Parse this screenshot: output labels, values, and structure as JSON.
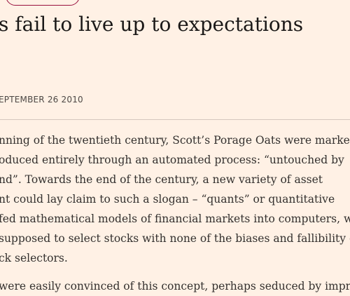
{
  "article": {
    "headline": "s fail to live up to expectations",
    "dateline": "EPTEMBER 26 2010",
    "paragraph1_lines": [
      "nning of the twentieth century, Scott’s Porage Oats were market",
      "oduced entirely through an automated process: “untouched by",
      "nd”. Towards the end of the century, a new variety of asset",
      "nt could lay claim to such a slogan – “quants” or quantitative",
      "fed mathematical models of financial markets into computers, w",
      "supposed to select stocks with none of the biases and fallibility o",
      "ck selectors."
    ],
    "paragraph2_lines": [
      "were easily convinced of this concept, perhaps seduced by impre"
    ]
  },
  "colors": {
    "background": "#fff1e5",
    "pill_border": "#990f3d",
    "headline": "#1a1817",
    "body": "#33302e",
    "rule": "#d4c7bd"
  }
}
